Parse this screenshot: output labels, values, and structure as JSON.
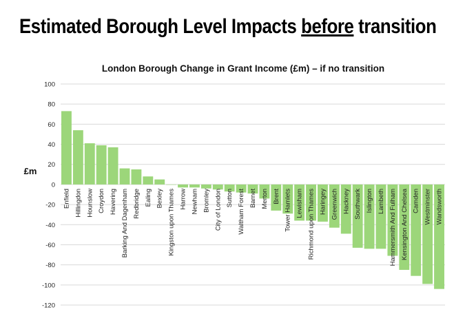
{
  "slide": {
    "title_part1": "Estimated Borough Level Impacts ",
    "title_underlined": "before",
    "title_part2": " transition"
  },
  "chart_data": {
    "type": "bar",
    "title": "London Borough Change in Grant Income (£m) – if no transition",
    "xlabel": "",
    "ylabel": "£m",
    "ylim": [
      -120,
      100
    ],
    "yticks": [
      100,
      80,
      60,
      40,
      20,
      0,
      -20,
      -40,
      -60,
      -80,
      -100,
      -120
    ],
    "grid": true,
    "legend": "none",
    "bar_color": "#9cd67a",
    "categories": [
      "Enfield",
      "Hillingdon",
      "Hounslow",
      "Croydon",
      "Havering",
      "Barking And Dagenham",
      "Redbridge",
      "Ealing",
      "Bexley",
      "Kingston upon Thames",
      "Harrow",
      "Newham",
      "Bromley",
      "City of London",
      "Sutton",
      "Waltham Forest",
      "Barnet",
      "Merton",
      "Brent",
      "Tower Hamlets",
      "Lewisham",
      "Richmond upon Thames",
      "Haringey",
      "Greenwich",
      "Hackney",
      "Southwark",
      "Islington",
      "Lambeth",
      "Hammersmith And Fulham",
      "Kensington And Chelsea",
      "Camden",
      "Westminster",
      "Wandsworth"
    ],
    "values": [
      73,
      54,
      41,
      39,
      37,
      16,
      15,
      8,
      5,
      0,
      -3,
      -3,
      -4,
      -5,
      -7,
      -8,
      -9,
      -14,
      -26,
      -29,
      -36,
      -36,
      -37,
      -43,
      -49,
      -63,
      -64,
      -64,
      -71,
      -85,
      -91,
      -99,
      -104
    ]
  }
}
